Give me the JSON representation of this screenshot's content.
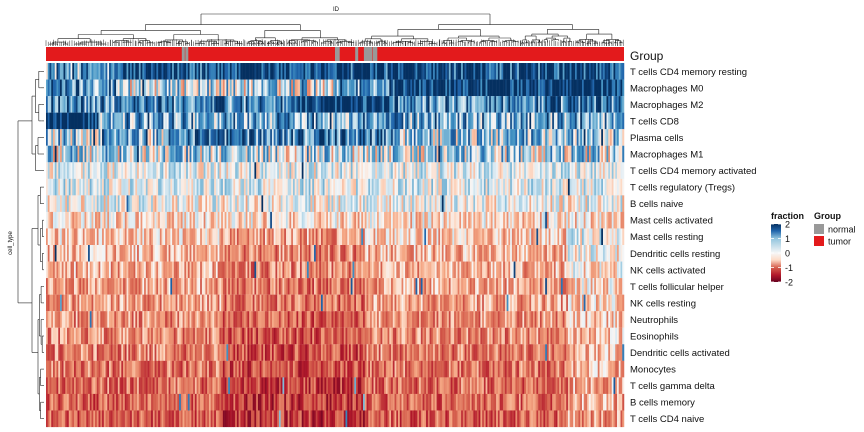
{
  "chart_data": {
    "type": "heatmap",
    "x_axis_title": "ID",
    "y_axis_title": "cell_type",
    "annotation_title": "Group",
    "rows": [
      "T cells CD4 memory resting",
      "Macrophages M0",
      "Macrophages M2",
      "T cells CD8",
      "Plasma cells",
      "Macrophages M1",
      "T cells CD4 memory activated",
      "T cells regulatory (Tregs)",
      "B cells naive",
      "Mast cells activated",
      "Mast cells resting",
      "Dendritic cells resting",
      "NK cells activated",
      "T cells follicular helper",
      "NK cells resting",
      "Neutrophils",
      "Eosinophils",
      "Dendritic cells activated",
      "Monocytes",
      "T cells gamma delta",
      "B cells memory",
      "T cells CD4 naive"
    ],
    "row_mean_scaled_values": [
      1.7,
      1.1,
      1.2,
      0.9,
      0.6,
      0.4,
      0.1,
      0.15,
      0.0,
      -0.2,
      -0.3,
      -0.45,
      -0.5,
      -0.55,
      -0.6,
      -0.7,
      -0.75,
      -0.8,
      -0.85,
      -0.9,
      -0.95,
      -1.0
    ],
    "columns_approx": 330,
    "color_legend": {
      "title": "fraction",
      "ticks": [
        "2",
        "1",
        "0",
        "-1",
        "-2"
      ],
      "range": [
        -2,
        2
      ],
      "colors": {
        "high": "#053061",
        "mid": "#f7f7f7",
        "low": "#67001f"
      }
    },
    "group_legend": {
      "title": "Group",
      "entries": [
        {
          "label": "normal",
          "color": "#999999"
        },
        {
          "label": "tumor",
          "color": "#e31a1c"
        }
      ]
    },
    "normal_sample_column_fractions": [
      0.235,
      0.241,
      0.5,
      0.503,
      0.535,
      0.55,
      0.553,
      0.556,
      0.559,
      0.565,
      0.568
    ]
  }
}
